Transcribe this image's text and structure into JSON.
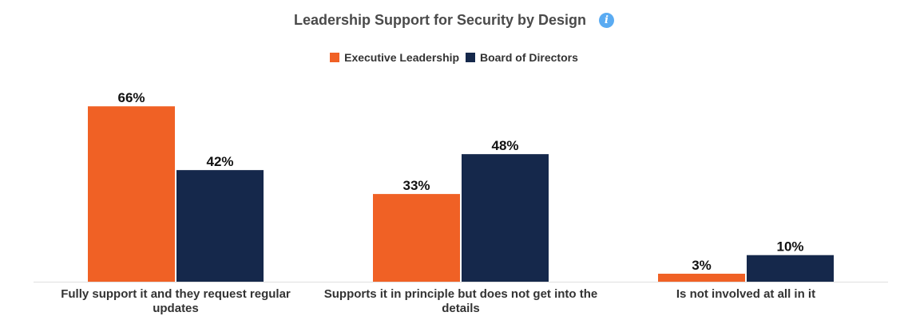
{
  "chart_data": {
    "type": "bar",
    "title": "Leadership Support for Security by Design",
    "categories": [
      [
        "Fully support it and they request regular",
        "updates"
      ],
      [
        "Supports it in principle but does not get into the",
        "details"
      ],
      [
        "Is not involved at all in it"
      ]
    ],
    "series": [
      {
        "name": "Executive Leadership",
        "values": [
          66,
          33,
          3
        ],
        "labels": [
          "66%",
          "33%",
          "3%"
        ],
        "color": "#f06125"
      },
      {
        "name": "Board of Directors",
        "values": [
          42,
          48,
          10
        ],
        "labels": [
          "42%",
          "48%",
          "10%"
        ],
        "color": "#15284b"
      }
    ],
    "ylim": [
      0,
      70
    ],
    "legend_position": "top-center",
    "grid": false
  },
  "ui": {
    "info_icon": "info-icon",
    "info_glyph": "i"
  }
}
